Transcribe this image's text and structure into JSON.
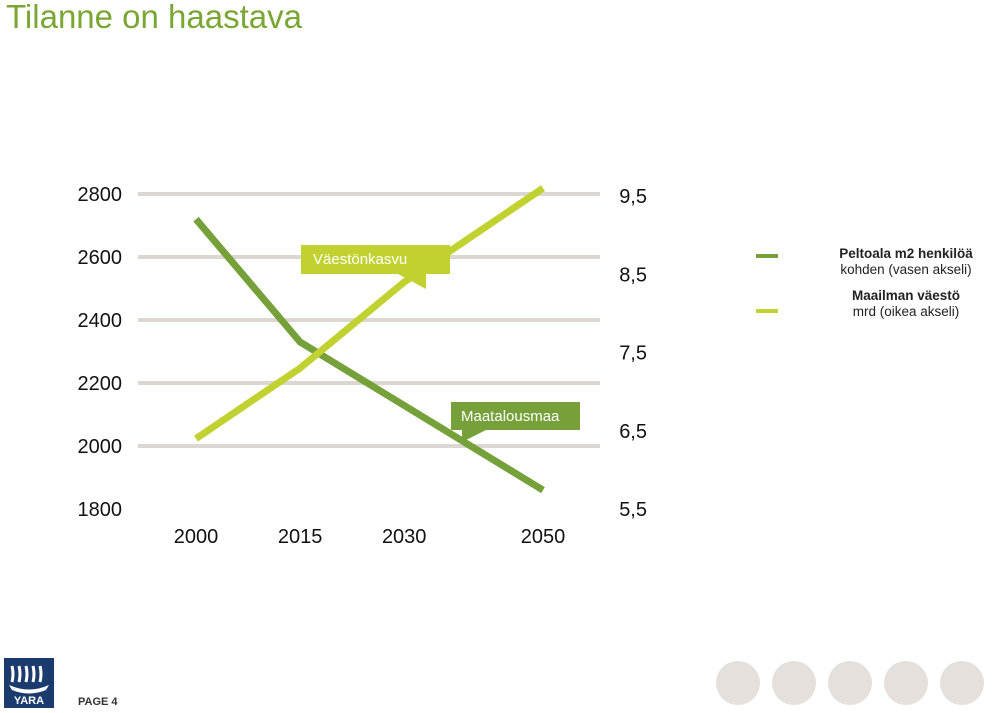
{
  "header": {
    "title": "Tilanne on haastava"
  },
  "chart_data": {
    "type": "line",
    "categories": [
      "2000",
      "2015",
      "2030",
      "2050"
    ],
    "x": [
      2000,
      2015,
      2030,
      2050
    ],
    "y_left": {
      "ticks": [
        "2800",
        "2600",
        "2400",
        "2200",
        "2000",
        "1800"
      ],
      "values": [
        2800,
        2600,
        2400,
        2200,
        2000,
        1800
      ],
      "range": [
        1800,
        2800
      ]
    },
    "y_right": {
      "ticks": [
        "9,5",
        "8,5",
        "7,5",
        "6,5",
        "5,5"
      ],
      "values": [
        9.5,
        8.5,
        7.5,
        6.5,
        5.5
      ],
      "range": [
        5.5,
        9.5
      ]
    },
    "series": [
      {
        "name": "Peltoala m2 henkilöä kohden (vasen akseli)",
        "axis": "left",
        "color": "#76a13a",
        "x": [
          2000,
          2015,
          2050
        ],
        "values": [
          2720,
          2330,
          1860
        ]
      },
      {
        "name": "Maailman väestö mrd (oikea akseli)",
        "axis": "right",
        "color": "#c1d230",
        "x": [
          2000,
          2015,
          2030,
          2050
        ],
        "values": [
          6.4,
          7.3,
          8.4,
          9.6
        ]
      }
    ],
    "annotations": [
      {
        "text": "Väestönkasvu",
        "series": 1,
        "x": 2030,
        "color": "#c1d230"
      },
      {
        "text": "Maatalousmaa",
        "series": 0,
        "x": 2030,
        "color": "#76a13a"
      }
    ],
    "grid": true,
    "legend": {
      "position": "right",
      "items": [
        {
          "bold": "Peltoala m2 henkilöä",
          "rest": "kohden (vasen akseli)",
          "color": "#76a13a"
        },
        {
          "bold": "Maailman väestö",
          "rest": "mrd (oikea akseli)",
          "color": "#c1d230"
        }
      ]
    }
  },
  "footer": {
    "logo_text": "YARA",
    "logo_color": "#1b3a6e",
    "page_label": "PAGE 4",
    "dots_color": "#e5e0db"
  }
}
